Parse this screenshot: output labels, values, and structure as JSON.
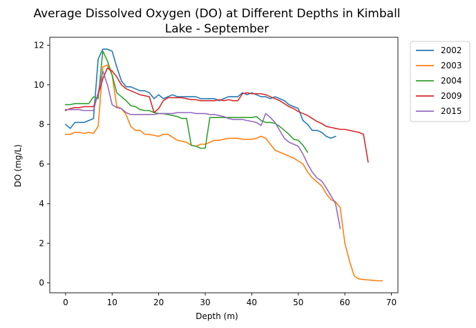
{
  "chart_data": {
    "type": "line",
    "title_line1": "Average Dissolved Oxygen (DO) at Different Depths in Kimball",
    "title_line2": "Lake - September",
    "xlabel": "Depth (m)",
    "ylabel": "DO (mg/L)",
    "xlim": [
      -3.4,
      71.4
    ],
    "ylim": [
      -0.5,
      12.4
    ],
    "xticks": [
      0,
      10,
      20,
      30,
      40,
      50,
      60,
      70
    ],
    "yticks": [
      0,
      2,
      4,
      6,
      8,
      10,
      12
    ],
    "grid": false,
    "legend_position": "outside-top-right",
    "series": [
      {
        "name": "2002",
        "color": "#1f77b4",
        "x": [
          0,
          1,
          2,
          3,
          4,
          5,
          6,
          7,
          8,
          9,
          10,
          11,
          12,
          13,
          14,
          15,
          16,
          17,
          18,
          19,
          20,
          21,
          22,
          23,
          24,
          25,
          26,
          27,
          28,
          29,
          30,
          31,
          32,
          33,
          34,
          35,
          36,
          37,
          38,
          39,
          40,
          41,
          42,
          43,
          44,
          45,
          46,
          47,
          48,
          49,
          50,
          51,
          52,
          53,
          54,
          55,
          56,
          57,
          58
        ],
        "y": [
          8.0,
          7.8,
          8.1,
          8.1,
          8.1,
          8.2,
          8.3,
          11.3,
          11.8,
          11.8,
          11.7,
          10.9,
          10.2,
          9.9,
          9.9,
          9.8,
          9.7,
          9.7,
          9.6,
          9.3,
          9.5,
          9.3,
          9.4,
          9.5,
          9.4,
          9.4,
          9.4,
          9.4,
          9.4,
          9.3,
          9.3,
          9.3,
          9.3,
          9.2,
          9.3,
          9.4,
          9.4,
          9.4,
          9.6,
          9.5,
          9.6,
          9.5,
          9.4,
          9.4,
          9.3,
          9.4,
          9.3,
          9.2,
          9.0,
          8.9,
          8.8,
          8.2,
          8.0,
          7.7,
          7.7,
          7.6,
          7.4,
          7.3,
          7.4
        ]
      },
      {
        "name": "2003",
        "color": "#ff7f0e",
        "x": [
          0,
          1,
          2,
          3,
          4,
          5,
          6,
          7,
          8,
          9,
          10,
          11,
          12,
          13,
          14,
          15,
          16,
          17,
          18,
          19,
          20,
          21,
          22,
          23,
          24,
          25,
          26,
          27,
          28,
          29,
          30,
          31,
          32,
          33,
          34,
          35,
          36,
          37,
          38,
          39,
          40,
          41,
          42,
          43,
          44,
          45,
          46,
          47,
          48,
          49,
          50,
          51,
          52,
          53,
          54,
          55,
          56,
          57,
          58,
          59,
          60,
          61,
          62,
          63,
          64,
          65,
          66,
          67,
          68
        ],
        "y": [
          7.5,
          7.5,
          7.6,
          7.6,
          7.55,
          7.6,
          7.55,
          7.9,
          10.9,
          11.0,
          10.5,
          8.9,
          8.8,
          8.5,
          7.9,
          7.7,
          7.7,
          7.5,
          7.5,
          7.45,
          7.4,
          7.5,
          7.5,
          7.35,
          7.2,
          7.15,
          7.1,
          6.95,
          6.9,
          7.0,
          7.0,
          7.1,
          7.2,
          7.2,
          7.25,
          7.3,
          7.3,
          7.3,
          7.25,
          7.25,
          7.25,
          7.3,
          7.4,
          7.3,
          7.0,
          6.7,
          6.6,
          6.5,
          6.4,
          6.3,
          6.15,
          6.0,
          5.6,
          5.3,
          5.1,
          4.9,
          4.5,
          4.2,
          4.1,
          3.8,
          2.0,
          1.1,
          0.35,
          0.2,
          0.17,
          0.15,
          0.13,
          0.11,
          0.1
        ]
      },
      {
        "name": "2004",
        "color": "#2ca02c",
        "x": [
          0,
          1,
          2,
          3,
          4,
          5,
          6,
          7,
          8,
          9,
          10,
          11,
          12,
          13,
          14,
          15,
          16,
          17,
          18,
          19,
          20,
          21,
          22,
          23,
          24,
          25,
          26,
          27,
          28,
          29,
          30,
          31,
          32,
          33,
          34,
          35,
          36,
          37,
          38,
          39,
          40,
          41,
          42,
          43,
          44,
          45,
          46,
          47,
          48,
          49,
          50,
          51,
          52
        ],
        "y": [
          9.0,
          9.0,
          9.05,
          9.05,
          9.05,
          9.05,
          9.4,
          9.3,
          11.7,
          11.2,
          10.5,
          9.6,
          9.4,
          9.2,
          8.95,
          8.9,
          8.75,
          8.7,
          8.7,
          8.6,
          8.55,
          8.55,
          8.5,
          8.45,
          8.4,
          8.3,
          8.3,
          6.95,
          6.9,
          6.8,
          6.8,
          8.35,
          8.35,
          8.35,
          8.35,
          8.35,
          8.35,
          8.35,
          8.35,
          8.35,
          8.35,
          8.4,
          8.2,
          8.1,
          8.1,
          8.05,
          7.9,
          7.7,
          7.5,
          7.25,
          7.2,
          6.95,
          6.6
        ]
      },
      {
        "name": "2009",
        "color": "#d62728",
        "x": [
          0,
          1,
          2,
          3,
          4,
          5,
          6,
          7,
          8,
          9,
          10,
          11,
          12,
          13,
          14,
          15,
          16,
          17,
          18,
          19,
          20,
          21,
          22,
          23,
          24,
          25,
          26,
          27,
          28,
          29,
          30,
          31,
          32,
          33,
          34,
          35,
          36,
          37,
          38,
          39,
          40,
          41,
          42,
          43,
          44,
          45,
          46,
          47,
          48,
          49,
          50,
          51,
          52,
          53,
          54,
          55,
          56,
          57,
          58,
          59,
          60,
          61,
          62,
          63,
          64,
          65
        ],
        "y": [
          8.7,
          8.8,
          8.85,
          8.85,
          8.9,
          8.9,
          8.9,
          9.5,
          10.3,
          10.85,
          10.7,
          10.4,
          10.0,
          9.8,
          9.7,
          9.6,
          9.5,
          9.45,
          9.4,
          8.6,
          8.8,
          9.2,
          9.35,
          9.35,
          9.35,
          9.35,
          9.3,
          9.25,
          9.25,
          9.2,
          9.2,
          9.2,
          9.2,
          9.25,
          9.2,
          9.25,
          9.2,
          9.2,
          9.55,
          9.6,
          9.55,
          9.55,
          9.55,
          9.5,
          9.4,
          9.3,
          9.2,
          9.05,
          8.9,
          8.8,
          8.65,
          8.55,
          8.45,
          8.3,
          8.15,
          8.05,
          7.9,
          7.85,
          7.8,
          7.75,
          7.75,
          7.7,
          7.65,
          7.6,
          7.5,
          6.1
        ]
      },
      {
        "name": "2015",
        "color": "#9467bd",
        "x": [
          0,
          1,
          2,
          3,
          4,
          5,
          6,
          7,
          8,
          9,
          10,
          11,
          12,
          13,
          14,
          15,
          16,
          17,
          18,
          19,
          20,
          21,
          22,
          23,
          24,
          25,
          26,
          27,
          28,
          29,
          30,
          31,
          32,
          33,
          34,
          35,
          36,
          37,
          38,
          39,
          40,
          41,
          42,
          43,
          44,
          45,
          46,
          47,
          48,
          49,
          50,
          51,
          52,
          53,
          54,
          55,
          56,
          57,
          58,
          59
        ],
        "y": [
          8.75,
          8.75,
          8.75,
          8.75,
          8.7,
          8.7,
          8.7,
          9.6,
          10.7,
          10.0,
          9.0,
          8.85,
          8.8,
          8.6,
          8.5,
          8.5,
          8.5,
          8.5,
          8.5,
          8.5,
          8.55,
          8.55,
          8.55,
          8.55,
          8.6,
          8.6,
          8.6,
          8.6,
          8.55,
          8.55,
          8.55,
          8.5,
          8.5,
          8.45,
          8.4,
          8.3,
          8.25,
          8.25,
          8.25,
          8.2,
          8.15,
          8.1,
          7.95,
          8.55,
          8.35,
          8.1,
          7.7,
          7.3,
          7.1,
          7.0,
          6.9,
          6.5,
          6.0,
          5.6,
          5.3,
          5.15,
          4.8,
          4.4,
          4.0,
          2.75
        ]
      }
    ]
  }
}
